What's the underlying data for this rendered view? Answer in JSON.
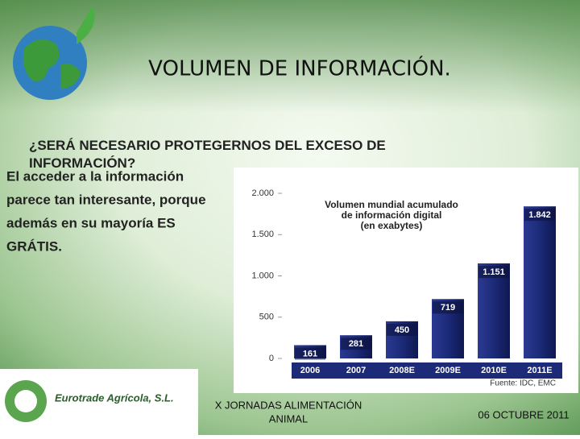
{
  "title": "VOLUMEN DE INFORMACIÓN.",
  "question": "¿SERÁ NECESARIO PROTEGERNOS DEL EXCESO DE INFORMACIÓN?",
  "body": [
    "El acceder a la información",
    "parece tan interesante, porque",
    "además en su mayoría ES",
    "GRÁTIS."
  ],
  "chart_data": {
    "type": "bar",
    "title": [
      "Volumen mundial acumulado",
      "de información digital",
      "(en exabytes)"
    ],
    "categories": [
      "2006",
      "2007",
      "2008E",
      "2009E",
      "2010E",
      "2011E"
    ],
    "values": [
      161,
      281,
      450,
      719,
      1151,
      1842
    ],
    "value_labels": [
      "161",
      "281",
      "450",
      "719",
      "1.151",
      "1.842"
    ],
    "color": "#1c2a78",
    "ylim": [
      0,
      2000
    ],
    "yticks": [
      0,
      500,
      {
        "value": 1000,
        "label": "1.000"
      },
      {
        "value": 1500,
        "label": "1.500"
      },
      {
        "value": 2000,
        "label": "2.000"
      }
    ],
    "source": "Fuente: IDC, EMC"
  },
  "logo": {
    "company": "Eurotrade Agrícola, S.L."
  },
  "footer": {
    "event": [
      "X JORNADAS ALIMENTACIÓN",
      "ANIMAL"
    ],
    "date": "06 OCTUBRE 2011"
  }
}
